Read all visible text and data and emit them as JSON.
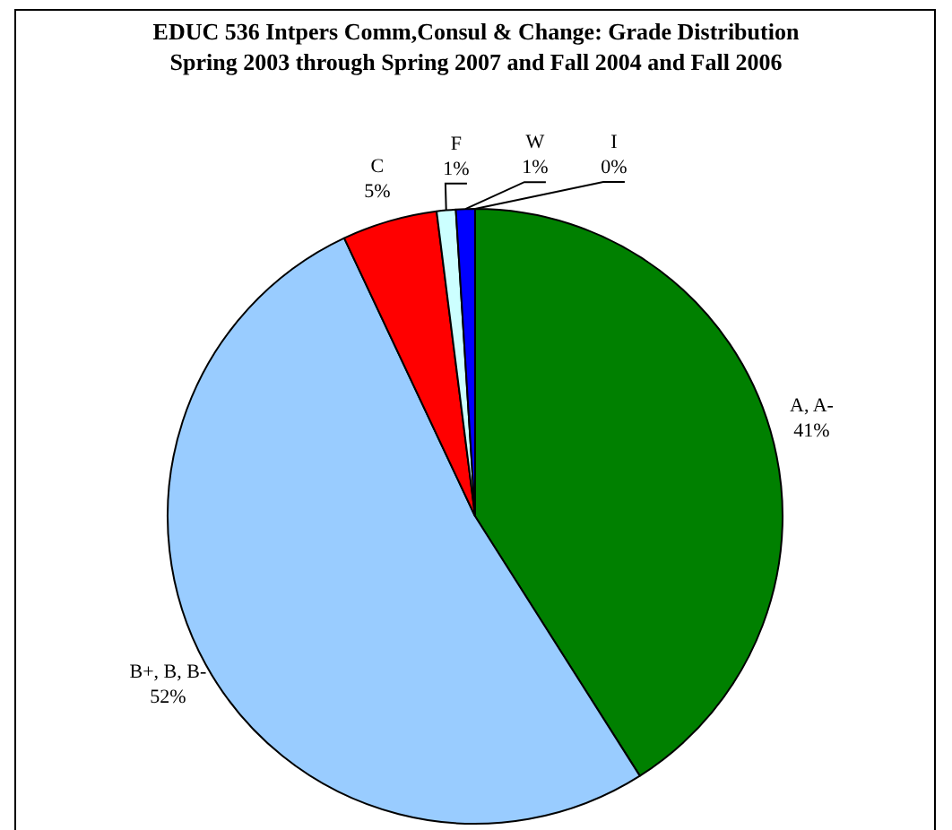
{
  "chart_data": {
    "type": "pie",
    "title": "EDUC 536 Intpers Comm,Consul & Change: Grade Distribution",
    "subtitle": "Spring 2003 through Spring 2007 and Fall 2004 and Fall 2006",
    "categories": [
      "A, A-",
      "B+, B, B-",
      "C",
      "F",
      "W",
      "I"
    ],
    "values": [
      41,
      52,
      5,
      1,
      1,
      0
    ],
    "value_labels": [
      "41%",
      "52%",
      "5%",
      "1%",
      "1%",
      "0%"
    ],
    "colors": [
      "#008000",
      "#99ccff",
      "#ff0000",
      "#ccffff",
      "#0000ff",
      "#ffff00"
    ],
    "legend": false
  }
}
